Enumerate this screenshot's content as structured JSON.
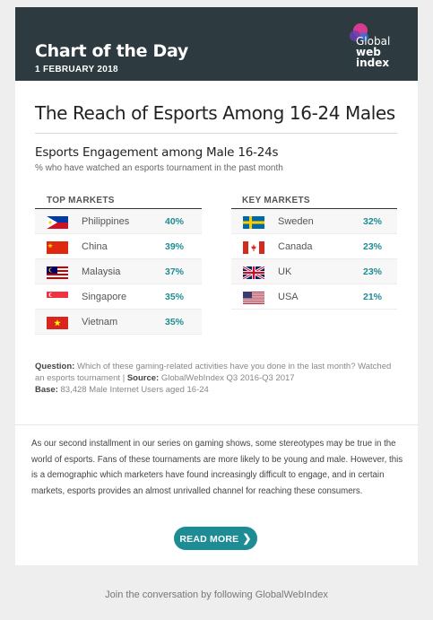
{
  "header": {
    "title": "Chart of the Day",
    "date": "1 FEBRUARY 2018",
    "logo": {
      "line1": "Global",
      "line2": "web",
      "line3": "index"
    }
  },
  "article": {
    "title": "The Reach of Esports Among 16-24 Males",
    "chart_title": "Esports Engagement among Male 16-24s",
    "chart_subtitle": "% who have watched an esports tournament in the past month"
  },
  "chart_data": {
    "type": "table",
    "tables": [
      {
        "heading": "TOP MARKETS",
        "rows": [
          {
            "country": "Philippines",
            "value": "40%",
            "flag": "philippines-flag"
          },
          {
            "country": "China",
            "value": "39%",
            "flag": "china-flag"
          },
          {
            "country": "Malaysia",
            "value": "37%",
            "flag": "malaysia-flag"
          },
          {
            "country": "Singapore",
            "value": "35%",
            "flag": "singapore-flag"
          },
          {
            "country": "Vietnam",
            "value": "35%",
            "flag": "vietnam-flag"
          }
        ]
      },
      {
        "heading": "KEY MARKETS",
        "rows": [
          {
            "country": "Sweden",
            "value": "32%",
            "flag": "sweden-flag"
          },
          {
            "country": "Canada",
            "value": "23%",
            "flag": "canada-flag"
          },
          {
            "country": "UK",
            "value": "23%",
            "flag": "uk-flag"
          },
          {
            "country": "USA",
            "value": "21%",
            "flag": "usa-flag"
          }
        ]
      }
    ]
  },
  "source": {
    "question_label": "Question:",
    "question_text": "Which of these gaming-related activities have you done in the last month? Watched an esports tournament |",
    "source_label": "Source:",
    "source_text": "GlobalWebIndex Q3 2016-Q3 2017",
    "base_label": "Base:",
    "base_text": "83,428 Male Internet Users aged 16-24"
  },
  "body": {
    "text": "As our second installment in our series on gaming shows, some stereotypes may be true in the world of esports. Fans of these tournaments are more likely to be young and male. However, this is a demographic which marketers have found increasingly difficult to engage, and in certain markets, esports provides an almost unrivalled channel for reaching these consumers."
  },
  "cta": {
    "label": "READ MORE",
    "icon": "chevron-right-icon"
  },
  "footer": {
    "text": "Join the conversation by following GlobalWebIndex"
  },
  "colors": {
    "header_bg": "#2d3a40",
    "accent": "#1e8c94",
    "page_bg": "#eeeeee"
  }
}
